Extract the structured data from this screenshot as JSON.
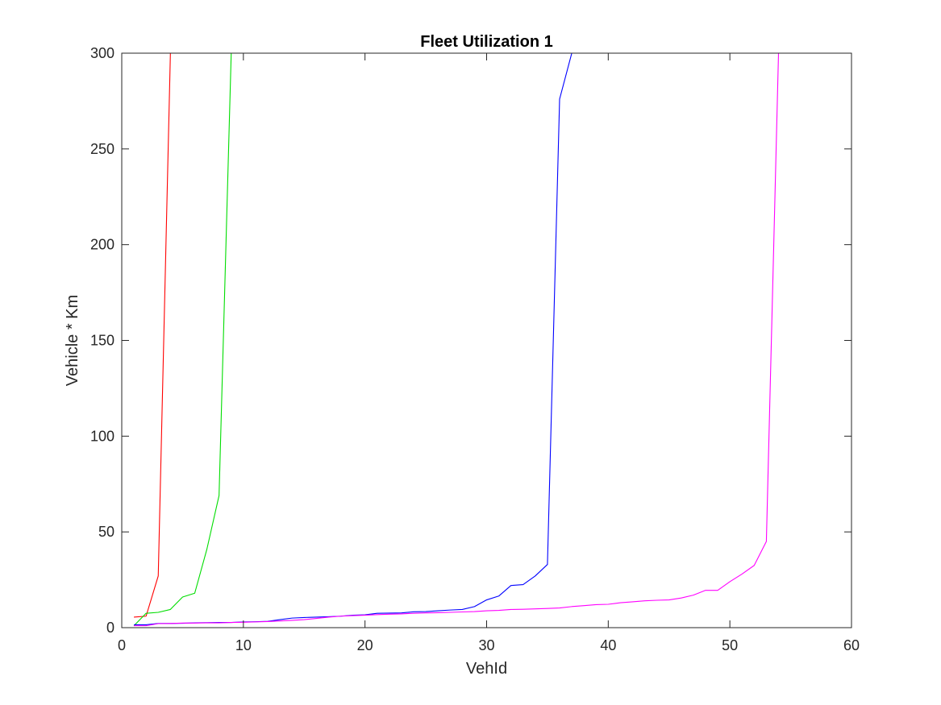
{
  "chart_data": {
    "type": "line",
    "title": "Fleet Utilization 1",
    "xlabel": "VehId",
    "ylabel": "Vehicle * Km",
    "xlim": [
      0,
      60
    ],
    "ylim": [
      0,
      300
    ],
    "xticks": [
      0,
      10,
      20,
      30,
      40,
      50,
      60
    ],
    "yticks": [
      0,
      50,
      100,
      150,
      200,
      250,
      300
    ],
    "grid": false,
    "legend": "none",
    "series": [
      {
        "color": "#ff0000",
        "x": [
          1,
          2,
          3,
          4
        ],
        "y": [
          5.5,
          6,
          27,
          300
        ]
      },
      {
        "color": "#00dd00",
        "x": [
          1,
          2,
          3,
          4,
          5,
          6,
          7,
          8,
          9
        ],
        "y": [
          1,
          7.5,
          8,
          9.5,
          16,
          18,
          41,
          69,
          300
        ]
      },
      {
        "color": "#0000ff",
        "x": [
          1,
          2,
          3,
          4,
          5,
          6,
          7,
          8,
          9,
          10,
          11,
          12,
          13,
          14,
          15,
          16,
          17,
          18,
          19,
          20,
          21,
          22,
          23,
          24,
          25,
          26,
          27,
          28,
          29,
          30,
          31,
          32,
          33,
          34,
          35,
          36,
          37
        ],
        "y": [
          1.5,
          1.5,
          2.2,
          2.2,
          2.3,
          2.5,
          2.6,
          2.7,
          2.7,
          3,
          3.1,
          3.3,
          4.2,
          5,
          5.3,
          5.5,
          5.7,
          6,
          6.5,
          6.7,
          7.5,
          7.6,
          7.7,
          8.3,
          8.4,
          8.8,
          9.2,
          9.5,
          11,
          14.5,
          16.5,
          22,
          22.5,
          27,
          33,
          276,
          300
        ]
      },
      {
        "color": "#ff00ff",
        "x": [
          1,
          2,
          3,
          4,
          5,
          6,
          7,
          8,
          9,
          10,
          11,
          12,
          13,
          14,
          15,
          16,
          17,
          18,
          19,
          20,
          21,
          22,
          23,
          24,
          25,
          26,
          27,
          28,
          29,
          30,
          31,
          32,
          33,
          34,
          35,
          36,
          37,
          38,
          39,
          40,
          41,
          42,
          43,
          44,
          45,
          46,
          47,
          48,
          49,
          50,
          51,
          52,
          53,
          54
        ],
        "y": [
          1,
          1,
          2.1,
          2.2,
          2.4,
          2.4,
          2.5,
          2.5,
          2.7,
          2.8,
          3,
          3.2,
          3.5,
          3.8,
          4.2,
          4.8,
          5.5,
          6,
          6.3,
          6.5,
          6.8,
          7,
          7.2,
          7.5,
          7.7,
          7.8,
          8,
          8.2,
          8.4,
          8.8,
          9,
          9.5,
          9.6,
          9.8,
          10,
          10.3,
          11,
          11.5,
          12,
          12.2,
          13,
          13.5,
          14,
          14.3,
          14.5,
          15.5,
          17,
          19.5,
          19.5,
          24,
          28,
          32.5,
          45,
          300
        ]
      }
    ]
  }
}
